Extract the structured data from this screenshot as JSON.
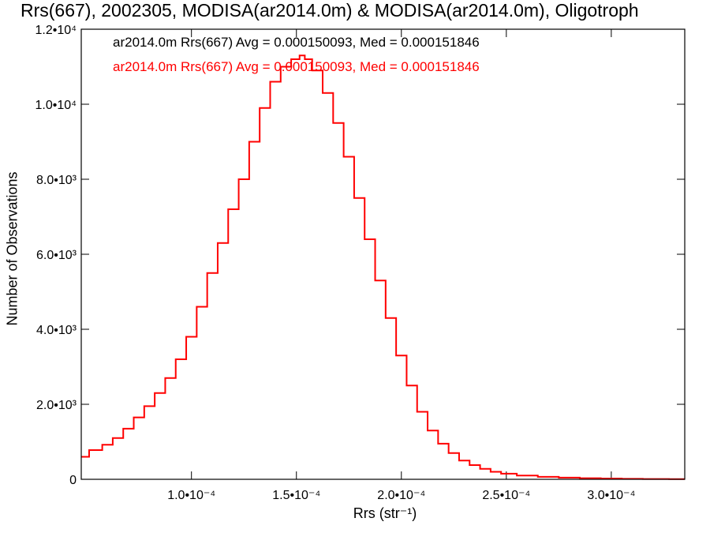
{
  "chart_data": {
    "type": "line",
    "title": "Rrs(667), 2002305, MODISA(ar2014.0m) & MODISA(ar2014.0m), Oligotroph",
    "xlabel": "Rrs (str⁻¹)",
    "ylabel": "Number of Observations",
    "xlim": [
      4.75e-05,
      0.000335
    ],
    "ylim": [
      0,
      12000
    ],
    "x_ticks": [
      {
        "value": 0.0001,
        "label": "1.0•10⁻⁴"
      },
      {
        "value": 0.00015,
        "label": "1.5•10⁻⁴"
      },
      {
        "value": 0.0002,
        "label": "2.0•10⁻⁴"
      },
      {
        "value": 0.00025,
        "label": "2.5•10⁻⁴"
      },
      {
        "value": 0.0003,
        "label": "3.0•10⁻⁴"
      }
    ],
    "y_ticks": [
      {
        "value": 0,
        "label": "0"
      },
      {
        "value": 2000,
        "label": "2.0•10³"
      },
      {
        "value": 4000,
        "label": "4.0•10³"
      },
      {
        "value": 6000,
        "label": "6.0•10³"
      },
      {
        "value": 8000,
        "label": "8.0•10³"
      },
      {
        "value": 10000,
        "label": "1.0•10⁴"
      },
      {
        "value": 12000,
        "label": "1.2•10⁴"
      }
    ],
    "legend": [
      {
        "text": "ar2014.0m Rrs(667) Avg = 0.000150093, Med = 0.000151846",
        "color": "#000000"
      },
      {
        "text": "ar2014.0m Rrs(667) Avg = 0.000150093, Med = 0.000151846",
        "color": "#ff0000"
      }
    ],
    "series": [
      {
        "color": "#ff0000",
        "x": [
          4.75e-05,
          5.5e-05,
          6e-05,
          6.5e-05,
          7e-05,
          7.5e-05,
          8e-05,
          8.5e-05,
          9e-05,
          9.5e-05,
          0.0001,
          0.000105,
          0.00011,
          0.000115,
          0.00012,
          0.000125,
          0.00013,
          0.000135,
          0.00014,
          0.000145,
          0.00015,
          0.000153,
          0.000155,
          0.00016,
          0.000165,
          0.00017,
          0.000175,
          0.00018,
          0.000185,
          0.00019,
          0.000195,
          0.0002,
          0.000205,
          0.00021,
          0.000215,
          0.00022,
          0.000225,
          0.00023,
          0.000235,
          0.00024,
          0.000245,
          0.00025,
          0.00026,
          0.00027,
          0.00028,
          0.00029,
          0.0003,
          0.00031,
          0.00032,
          0.000335
        ],
        "y": [
          600,
          780,
          920,
          1100,
          1350,
          1650,
          1950,
          2300,
          2700,
          3200,
          3800,
          4600,
          5500,
          6300,
          7200,
          8000,
          9000,
          9900,
          10600,
          11000,
          11200,
          11300,
          11200,
          10900,
          10300,
          9500,
          8600,
          7500,
          6400,
          5300,
          4300,
          3300,
          2500,
          1800,
          1300,
          950,
          700,
          500,
          380,
          280,
          200,
          150,
          100,
          65,
          45,
          30,
          20,
          12,
          8,
          5
        ]
      }
    ]
  }
}
